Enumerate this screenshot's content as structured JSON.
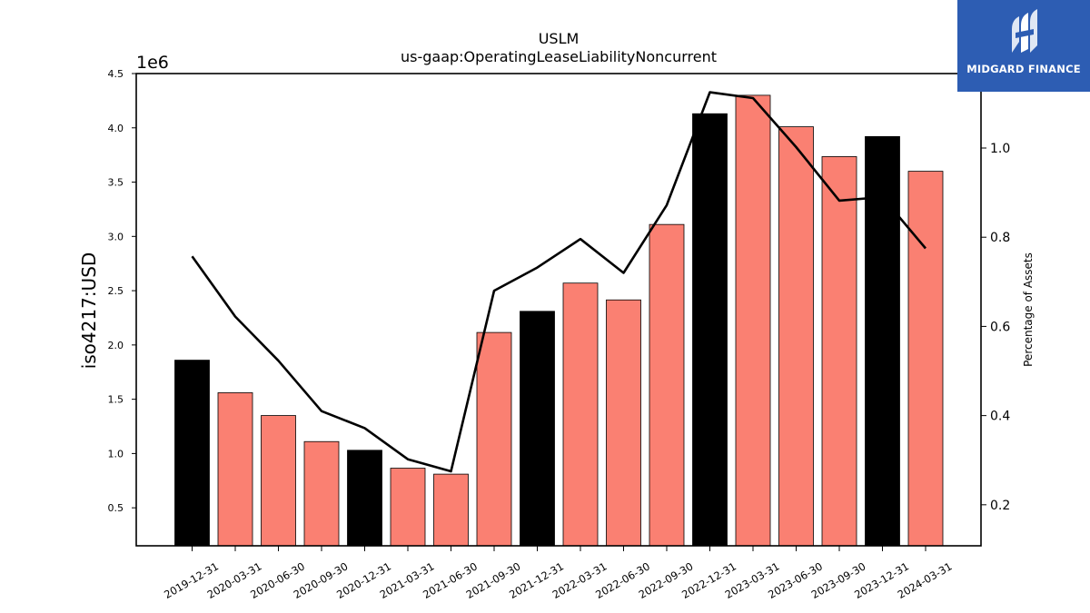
{
  "chart_data": {
    "type": "bar",
    "title": "USLM",
    "subtitle": "us-gaap:OperatingLeaseLiabilityNoncurrent",
    "ylabel": "iso4217:USD",
    "y_offset_label": "1e6",
    "y2label": "Percentage of Assets",
    "ylim": [
      150000,
      4500000
    ],
    "y2lim": [
      0.108,
      1.167
    ],
    "yticks": [
      "0.5",
      "1.0",
      "1.5",
      "2.0",
      "2.5",
      "3.0",
      "3.5",
      "4.0",
      "4.5"
    ],
    "y2ticks": [
      "0.2",
      "0.4",
      "0.6",
      "0.8",
      "1.0"
    ],
    "categories": [
      "2019-12-31",
      "2020-03-31",
      "2020-06-30",
      "2020-09-30",
      "2020-12-31",
      "2021-03-31",
      "2021-06-30",
      "2021-09-30",
      "2021-12-31",
      "2022-03-31",
      "2022-06-30",
      "2022-09-30",
      "2022-12-31",
      "2023-03-31",
      "2023-06-30",
      "2023-09-30",
      "2023-12-31",
      "2024-03-31"
    ],
    "series": [
      {
        "values": [
          1860000,
          1560000,
          1350000,
          1110000,
          1030000,
          865000,
          810000,
          2115000,
          2310000,
          2570000,
          2415000,
          3110000,
          4130000,
          4300000,
          4010000,
          3735000,
          3920000,
          3600000
        ],
        "colors": [
          "#000000",
          "#fa8072",
          "#fa8072",
          "#fa8072",
          "#000000",
          "#fa8072",
          "#fa8072",
          "#fa8072",
          "#000000",
          "#fa8072",
          "#fa8072",
          "#fa8072",
          "#000000",
          "#fa8072",
          "#fa8072",
          "#fa8072",
          "#000000",
          "#fa8072"
        ]
      },
      {
        "type": "line",
        "axis": "right",
        "values": [
          0.757,
          0.622,
          0.523,
          0.41,
          0.372,
          0.302,
          0.275,
          0.68,
          0.732,
          0.796,
          0.72,
          0.872,
          1.125,
          1.112,
          1.002,
          0.882,
          0.89,
          0.775
        ],
        "color": "#000000"
      }
    ],
    "grid": false,
    "legend": "none"
  },
  "logo": {
    "text": "MIDGARD FINANCE",
    "background": "#2d5db3"
  }
}
